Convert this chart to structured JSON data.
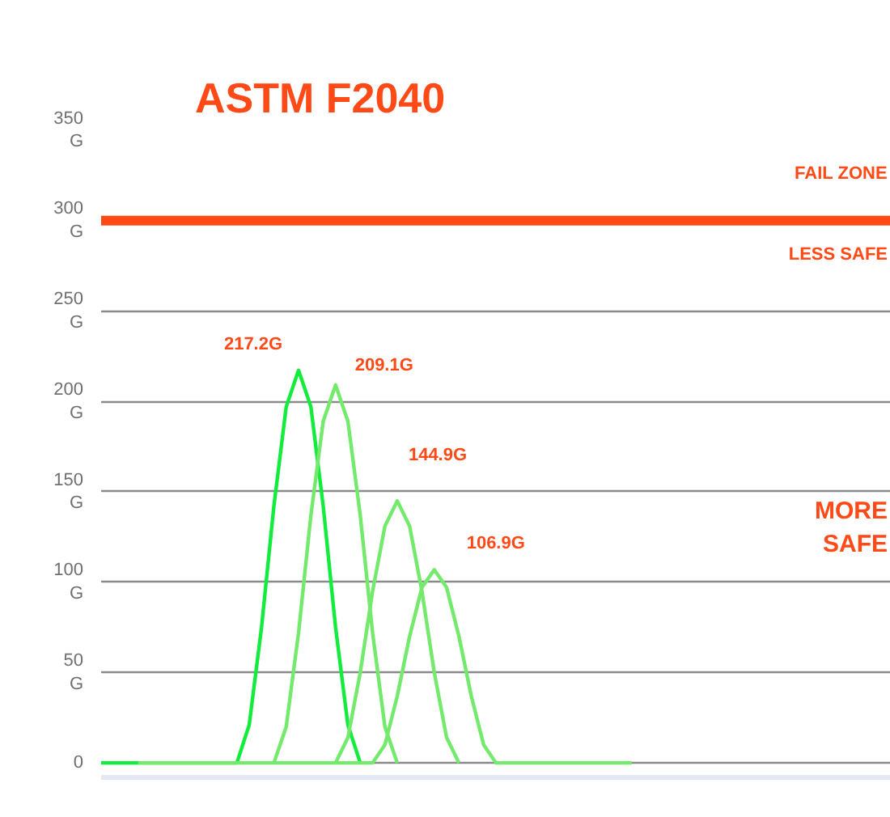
{
  "chart_data": {
    "type": "line",
    "title": "ASTM F2040",
    "categories": [
      null,
      null,
      null,
      null,
      null,
      null,
      null,
      null,
      null,
      null,
      null,
      null,
      null,
      null,
      null,
      null,
      null,
      null,
      null,
      null,
      null,
      null,
      null,
      null,
      null,
      null,
      null,
      null,
      null,
      null,
      null,
      null,
      null,
      null,
      null,
      null,
      null,
      null,
      null,
      null,
      null,
      null,
      null,
      null,
      null,
      null,
      null,
      null,
      null,
      null,
      null,
      null,
      null,
      null,
      null,
      null,
      null,
      null,
      null,
      null,
      null,
      null,
      null,
      null,
      null
    ],
    "series": [
      {
        "color": "#12ec3c",
        "values": [
          0,
          0,
          0,
          0,
          0,
          0,
          0,
          0,
          0,
          0,
          0,
          0,
          21,
          75,
          142,
          197,
          217.2,
          197,
          142,
          75,
          21,
          0,
          null,
          null,
          null,
          null,
          null,
          null,
          null,
          null,
          null,
          null,
          null,
          null,
          null,
          null,
          null,
          null,
          null,
          null,
          null,
          null,
          null,
          null,
          null,
          null,
          null,
          null,
          null,
          null,
          null,
          null,
          null,
          null,
          null,
          null,
          null,
          null,
          null,
          null,
          null,
          null,
          null,
          null,
          null
        ],
        "value_labels": [
          null,
          null,
          null,
          null,
          null,
          null,
          null,
          null,
          null,
          null,
          null,
          null,
          null,
          null,
          null,
          null,
          "217.2G",
          null,
          null,
          null,
          null,
          null,
          null,
          null,
          null,
          null,
          null,
          null,
          null,
          null,
          null,
          null,
          null,
          null,
          null,
          null,
          null,
          null,
          null,
          null,
          null,
          null,
          null,
          null,
          null,
          null,
          null,
          null,
          null,
          null,
          null,
          null,
          null,
          null,
          null,
          null,
          null,
          null,
          null,
          null,
          null,
          null,
          null,
          null,
          null
        ]
      },
      {
        "color": "#74ea6c",
        "values": [
          null,
          null,
          null,
          null,
          null,
          null,
          null,
          null,
          null,
          null,
          null,
          null,
          null,
          null,
          0,
          20,
          72,
          137,
          189,
          209.1,
          189,
          137,
          72,
          20,
          0,
          null,
          null,
          null,
          null,
          null,
          null,
          null,
          null,
          null,
          null,
          null,
          null,
          null,
          null,
          null,
          null,
          null,
          null,
          null,
          null,
          null,
          null,
          null,
          null,
          null,
          null,
          null,
          null,
          null,
          null,
          null,
          null,
          null,
          null,
          null,
          null,
          null,
          null,
          null,
          null
        ],
        "value_labels": [
          null,
          null,
          null,
          null,
          null,
          null,
          null,
          null,
          null,
          null,
          null,
          null,
          null,
          null,
          null,
          null,
          null,
          null,
          null,
          "209.1G",
          null,
          null,
          null,
          null,
          null,
          null,
          null,
          null,
          null,
          null,
          null,
          null,
          null,
          null,
          null,
          null,
          null,
          null,
          null,
          null,
          null,
          null,
          null,
          null,
          null,
          null,
          null,
          null,
          null,
          null,
          null,
          null,
          null,
          null,
          null,
          null,
          null,
          null,
          null,
          null,
          null,
          null,
          null,
          null,
          null
        ]
      },
      {
        "color": "#74ea6c",
        "values": [
          null,
          null,
          null,
          null,
          null,
          null,
          null,
          null,
          null,
          null,
          null,
          null,
          null,
          null,
          null,
          null,
          null,
          null,
          null,
          0,
          14,
          50,
          95,
          131,
          144.9,
          131,
          95,
          50,
          14,
          0,
          null,
          null,
          null,
          null,
          null,
          null,
          null,
          null,
          null,
          null,
          null,
          null,
          null,
          null,
          null,
          null,
          null,
          null,
          null,
          null,
          null,
          null,
          null,
          null,
          null,
          null,
          null,
          null,
          null,
          null,
          null,
          null,
          null,
          null,
          null
        ],
        "value_labels": [
          null,
          null,
          null,
          null,
          null,
          null,
          null,
          null,
          null,
          null,
          null,
          null,
          null,
          null,
          null,
          null,
          null,
          null,
          null,
          null,
          null,
          null,
          null,
          null,
          "144.9G",
          null,
          null,
          null,
          null,
          null,
          null,
          null,
          null,
          null,
          null,
          null,
          null,
          null,
          null,
          null,
          null,
          null,
          null,
          null,
          null,
          null,
          null,
          null,
          null,
          null,
          null,
          null,
          null,
          null,
          null,
          null,
          null,
          null,
          null,
          null,
          null,
          null,
          null,
          null,
          null
        ]
      },
      {
        "color": "#74ea6c",
        "values": [
          null,
          null,
          null,
          0,
          0,
          0,
          0,
          0,
          0,
          0,
          0,
          0,
          0,
          0,
          0,
          0,
          0,
          0,
          0,
          0,
          0,
          0,
          0,
          10,
          37,
          70,
          97,
          106.9,
          97,
          70,
          37,
          10,
          0,
          0,
          0,
          0,
          0,
          0,
          0,
          0,
          0,
          0,
          0,
          0,
          null,
          null,
          null,
          null,
          null,
          null,
          null,
          null,
          null,
          null,
          null,
          null,
          null,
          null,
          null,
          null,
          null,
          null,
          null,
          null,
          null
        ],
        "value_labels": [
          null,
          null,
          null,
          null,
          null,
          null,
          null,
          null,
          null,
          null,
          null,
          null,
          null,
          null,
          null,
          null,
          null,
          null,
          null,
          null,
          null,
          null,
          null,
          null,
          null,
          null,
          null,
          "106.9G",
          null,
          null,
          null,
          null,
          null,
          null,
          null,
          null,
          null,
          null,
          null,
          null,
          null,
          null,
          null,
          null,
          null,
          null,
          null,
          null,
          null,
          null,
          null,
          null,
          null,
          null,
          null,
          null,
          null,
          null,
          null,
          null,
          null,
          null,
          null,
          null,
          null
        ]
      }
    ],
    "ylim": [
      -8,
      350
    ],
    "yticks": [
      {
        "value": 0,
        "label": "0"
      },
      {
        "value": 50,
        "label": "50\nG"
      },
      {
        "value": 100,
        "label": "100\nG"
      },
      {
        "value": 150,
        "label": "150\nG"
      },
      {
        "value": 200,
        "label": "200\nG"
      },
      {
        "value": 250,
        "label": "250\nG"
      },
      {
        "value": 300,
        "label": "300\nG"
      },
      {
        "value": 350,
        "label": "350\nG"
      }
    ],
    "grid": "y",
    "tick_labels": "y",
    "marker": "none",
    "line_style": "solid",
    "ref_lines": [
      {
        "axis": "y",
        "value": 300,
        "color": "#ff4a17"
      }
    ],
    "annotations": [
      "FAIL ZONE",
      "LESS SAFE",
      "MORE\nSAFE"
    ]
  }
}
